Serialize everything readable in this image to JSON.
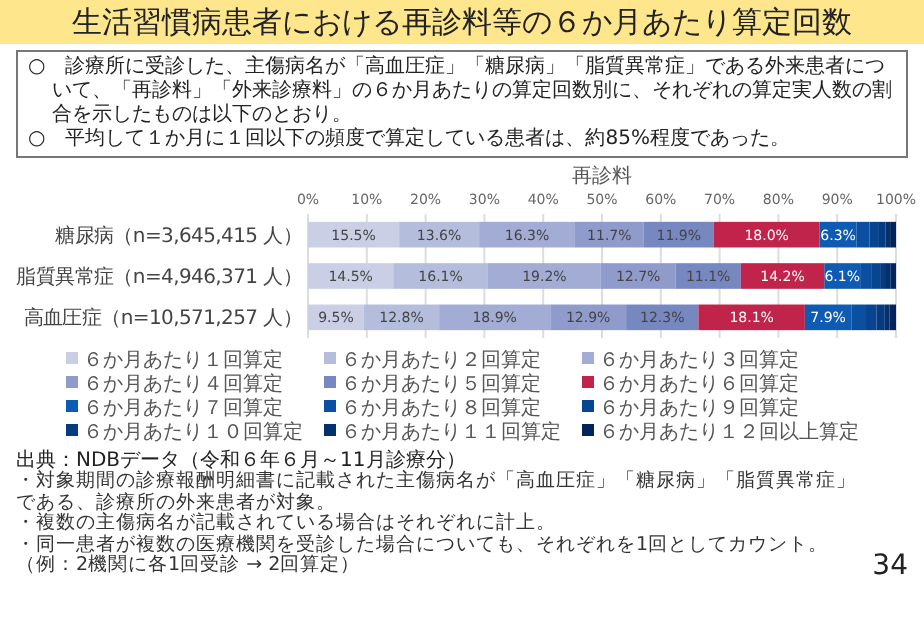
{
  "chart_data": {
    "type": "bar",
    "orientation": "horizontal",
    "stacked": true,
    "title": "生活習慣病患者における再診料等の６か月あたり算定回数",
    "subtitle": "再診料",
    "categories": [
      "糖尿病（n=3,645,415 人）",
      "脂質異常症（n=4,946,371 人）",
      "高血圧症（n=10,571,257 人）"
    ],
    "xlim": [
      0,
      100
    ],
    "xticks": [
      {
        "value": 0,
        "label": "0%"
      },
      {
        "value": 10,
        "label": "10%"
      },
      {
        "value": 20,
        "label": "20%"
      },
      {
        "value": 30,
        "label": "30%"
      },
      {
        "value": 40,
        "label": "40%"
      },
      {
        "value": 50,
        "label": "50%"
      },
      {
        "value": 60,
        "label": "60%"
      },
      {
        "value": 70,
        "label": "70%"
      },
      {
        "value": 80,
        "label": "80%"
      },
      {
        "value": 90,
        "label": "90%"
      },
      {
        "value": 100,
        "label": "100%"
      }
    ],
    "grid": "x",
    "legend": "bottom",
    "series": [
      {
        "name": "６か月あたり１回算定",
        "color": "#cacfe6",
        "values": [
          15.5,
          14.5,
          9.5
        ],
        "value_labels": [
          "15.5%",
          "14.5%",
          "9.5%"
        ]
      },
      {
        "name": "６か月あたり２回算定",
        "color": "#b5bddd",
        "values": [
          13.6,
          16.1,
          12.8
        ],
        "value_labels": [
          "13.6%",
          "16.1%",
          "12.8%"
        ]
      },
      {
        "name": "６か月あたり３回算定",
        "color": "#a2acd5",
        "values": [
          16.3,
          19.2,
          18.9
        ],
        "value_labels": [
          "16.3%",
          "19.2%",
          "18.9%"
        ]
      },
      {
        "name": "６か月あたり４回算定",
        "color": "#8f9bcb",
        "values": [
          11.7,
          12.7,
          12.9
        ],
        "value_labels": [
          "11.7%",
          "12.7%",
          "12.9%"
        ]
      },
      {
        "name": "６か月あたり５回算定",
        "color": "#7787c0",
        "values": [
          11.9,
          11.1,
          12.3
        ],
        "value_labels": [
          "11.9%",
          "11.1%",
          "12.3%"
        ]
      },
      {
        "name": "６か月あたり６回算定",
        "color": "#c0244a",
        "values": [
          18.0,
          14.2,
          18.1
        ],
        "value_labels": [
          "18.0%",
          "14.2%",
          "18.1%"
        ]
      },
      {
        "name": "６か月あたり７回算定",
        "color": "#0e5bb4",
        "values": [
          6.3,
          6.1,
          7.9
        ],
        "value_labels": [
          "6.3%",
          "6.1%",
          "7.9%"
        ]
      },
      {
        "name": "６か月あたり８回算定",
        "color": "#0a4fa2",
        "values": [
          2.2,
          2.0,
          2.5
        ],
        "value_labels": [
          null,
          null,
          null
        ]
      },
      {
        "name": "６か月あたり９回算定",
        "color": "#084590",
        "values": [
          1.6,
          1.4,
          1.8
        ],
        "value_labels": [
          null,
          null,
          null
        ]
      },
      {
        "name": "６か月あたり１０回算定",
        "color": "#063b80",
        "values": [
          1.1,
          1.0,
          1.3
        ],
        "value_labels": [
          null,
          null,
          null
        ]
      },
      {
        "name": "６か月あたり１１回算定",
        "color": "#04316e",
        "values": [
          0.8,
          0.8,
          0.9
        ],
        "value_labels": [
          null,
          null,
          null
        ]
      },
      {
        "name": "６か月あたり１２回以上算定",
        "color": "#02245a",
        "values": [
          1.0,
          0.9,
          1.1
        ],
        "value_labels": [
          null,
          null,
          null
        ]
      }
    ],
    "annotations": [
      "○　診療所に受診した、主傷病名が「高血圧症」「糖尿病」「脂質異常症」である外来患者について、「再診料」「外来診療料」の６か月あたりの算定回数別に、それぞれの算定実人数の割合を示したものは以下のとおり。",
      "○　平均して１か月に１回以下の頻度で算定している患者は、約85%程度であった。",
      "出典：NDBデータ（令和６年６月～11月診療分）",
      "・対象期間の診療報酬明細書に記載された主傷病名が「高血圧症」「糖尿病」「脂質異常症」である、診療所の外来患者が対象。",
      "・複数の主傷病名が記載されている場合はそれぞれに計上。",
      "・同一患者が複数の医療機関を受診した場合についても、それぞれを1回としてカウント。（例：2機関に各1回受診 → 2回算定）",
      "34"
    ]
  }
}
